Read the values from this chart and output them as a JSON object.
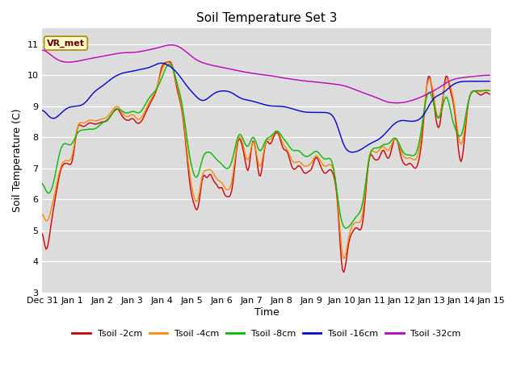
{
  "title": "Soil Temperature Set 3",
  "xlabel": "Time",
  "ylabel": "Soil Temperature (C)",
  "ylim": [
    3.0,
    11.5
  ],
  "yticks": [
    3.0,
    4.0,
    5.0,
    6.0,
    7.0,
    8.0,
    9.0,
    10.0,
    11.0
  ],
  "annotation_text": "VR_met",
  "bg_color": "#dcdcdc",
  "lines": [
    {
      "label": "Tsoil -2cm",
      "color": "#cc0000"
    },
    {
      "label": "Tsoil -4cm",
      "color": "#ff8800"
    },
    {
      "label": "Tsoil -8cm",
      "color": "#00bb00"
    },
    {
      "label": "Tsoil -16cm",
      "color": "#0000cc"
    },
    {
      "label": "Tsoil -32cm",
      "color": "#bb00bb"
    }
  ],
  "n_points": 360,
  "x_tick_labels": [
    "Dec 31",
    "Jan 1",
    "Jan 2",
    "Jan 3",
    "Jan 4",
    "Jan 5",
    "Jan 6",
    "Jan 7",
    "Jan 8",
    "Jan 9",
    "Jan 10",
    "Jan 11",
    "Jan 12",
    "Jan 13",
    "Jan 14",
    "Jan 15"
  ],
  "x_tick_positions": [
    0,
    24,
    48,
    72,
    96,
    120,
    144,
    168,
    192,
    216,
    240,
    264,
    288,
    312,
    336,
    360
  ]
}
